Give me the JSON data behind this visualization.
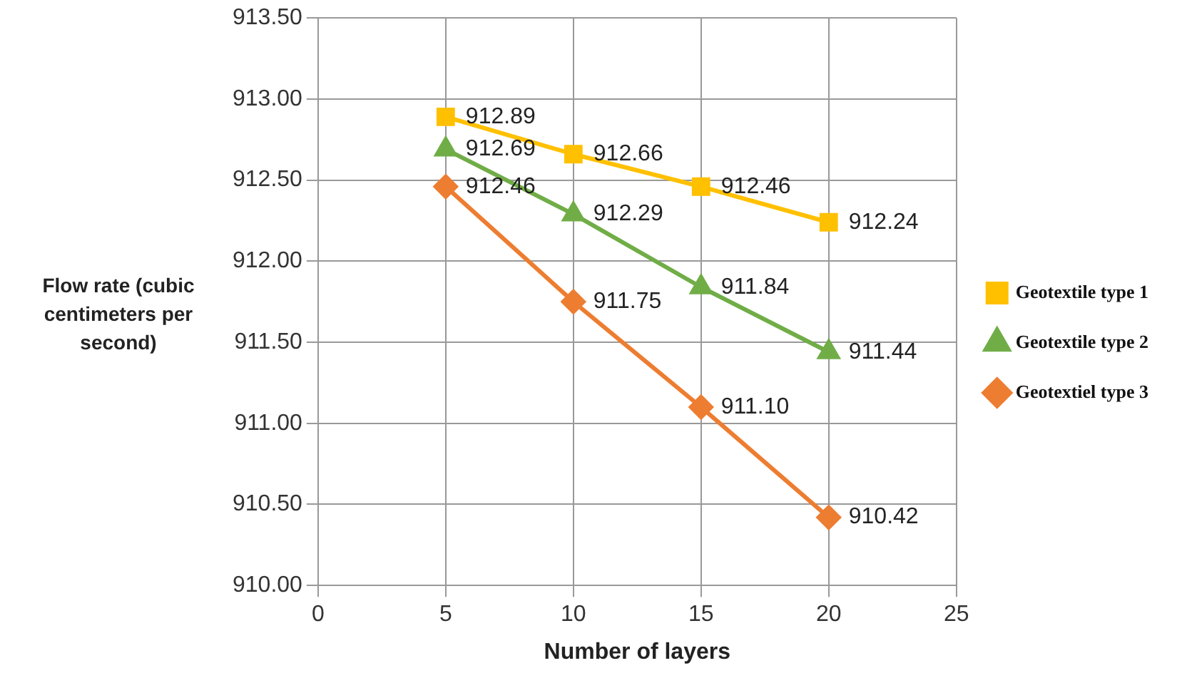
{
  "chart_data": {
    "type": "line",
    "xlabel": "Number of layers",
    "ylabel": "Flow rate (cubic centimeters per second)",
    "x": [
      5,
      10,
      15,
      20
    ],
    "series": [
      {
        "name": "Geotextile type 1",
        "color": "#ffc000",
        "marker": "square",
        "values": [
          912.89,
          912.66,
          912.46,
          912.24
        ],
        "value_labels": [
          "912.89",
          "912.66",
          "912.46",
          "912.24"
        ]
      },
      {
        "name": "Geotextile type 2",
        "color": "#70ad47",
        "marker": "triangle",
        "values": [
          912.69,
          912.29,
          911.84,
          911.44
        ],
        "value_labels": [
          "912.69",
          "912.29",
          "911.84",
          "911.44"
        ]
      },
      {
        "name": "Geotextiel type 3",
        "color": "#ed7d31",
        "marker": "diamond",
        "values": [
          912.46,
          911.75,
          911.1,
          910.42
        ],
        "value_labels": [
          "912.46",
          "911.75",
          "911.10",
          "910.42"
        ]
      }
    ],
    "xlim": [
      0,
      25
    ],
    "xticks": [
      0,
      5,
      10,
      15,
      20,
      25
    ],
    "ylim": [
      910,
      913.5
    ],
    "yticks": [
      {
        "value": 910,
        "label": "910.00"
      },
      {
        "value": 910.5,
        "label": "910.50"
      },
      {
        "value": 911,
        "label": "911.00"
      },
      {
        "value": 911.5,
        "label": "911.50"
      },
      {
        "value": 912,
        "label": "912.00"
      },
      {
        "value": 912.5,
        "label": "912.50"
      },
      {
        "value": 913,
        "label": "913.00"
      },
      {
        "value": 913.5,
        "label": "913.50"
      }
    ],
    "grid": true,
    "legend": "right"
  }
}
